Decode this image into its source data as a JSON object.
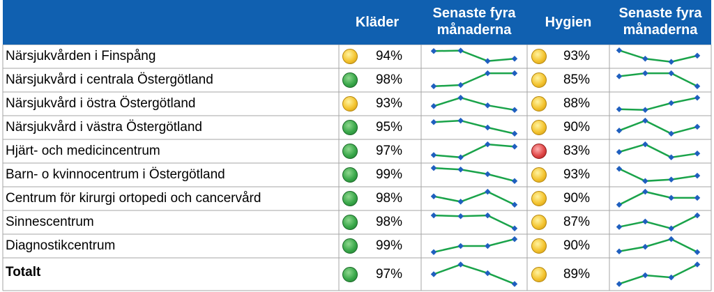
{
  "headers": {
    "klader": "Kläder",
    "trend1_line1": "Senaste fyra",
    "trend1_line2": "månaderna",
    "hygien": "Hygien",
    "trend2_line1": "Senaste fyra",
    "trend2_line2": "månaderna"
  },
  "colors": {
    "header_bg": "#1060b0",
    "spark_line": "#1aa34a",
    "spark_point": "#1f5fbf",
    "grid": "#a6a6a6"
  },
  "chart_data": {
    "type": "table",
    "rows": [
      {
        "name": "Närsjukvården i Finspång",
        "klader": "94%",
        "klader_status": "yellow",
        "klader_trend": [
          0.85,
          0.88,
          0.2,
          0.35
        ],
        "hygien": "93%",
        "hygien_status": "yellow",
        "hygien_trend": [
          0.9,
          0.35,
          0.15,
          0.55
        ]
      },
      {
        "name": "Närsjukvård i centrala Östergötland",
        "klader": "98%",
        "klader_status": "green",
        "klader_trend": [
          0.1,
          0.18,
          0.95,
          0.95
        ],
        "hygien": "85%",
        "hygien_status": "yellow",
        "hygien_trend": [
          0.75,
          0.95,
          0.95,
          0.1
        ]
      },
      {
        "name": "Närsjukvård i östra Östergötland",
        "klader": "93%",
        "klader_status": "yellow",
        "klader_trend": [
          0.35,
          0.9,
          0.4,
          0.1
        ],
        "hygien": "88%",
        "hygien_status": "yellow",
        "hygien_trend": [
          0.15,
          0.1,
          0.55,
          0.9
        ]
      },
      {
        "name": "Närsjukvård i västra Östergötland",
        "klader": "95%",
        "klader_status": "green",
        "klader_trend": [
          0.85,
          0.95,
          0.5,
          0.1
        ],
        "hygien": "90%",
        "hygien_status": "yellow",
        "hygien_trend": [
          0.3,
          0.95,
          0.1,
          0.55
        ]
      },
      {
        "name": "Hjärt- och medicincentrum",
        "klader": "97%",
        "klader_status": "green",
        "klader_trend": [
          0.25,
          0.1,
          0.95,
          0.8
        ],
        "hygien": "83%",
        "hygien_status": "red",
        "hygien_trend": [
          0.45,
          0.95,
          0.1,
          0.35
        ]
      },
      {
        "name": "Barn- o kvinnocentrum i Östergötland",
        "klader": "99%",
        "klader_status": "green",
        "klader_trend": [
          0.95,
          0.85,
          0.55,
          0.1
        ],
        "hygien": "93%",
        "hygien_status": "yellow",
        "hygien_trend": [
          0.9,
          0.1,
          0.2,
          0.45
        ]
      },
      {
        "name": "Centrum för kirurgi ortopedi och cancervård",
        "klader": "98%",
        "klader_status": "green",
        "klader_trend": [
          0.65,
          0.3,
          0.95,
          0.1
        ],
        "hygien": "90%",
        "hygien_status": "yellow",
        "hygien_trend": [
          0.1,
          0.95,
          0.55,
          0.55
        ]
      },
      {
        "name": "Sinnescentrum",
        "klader": "98%",
        "klader_status": "green",
        "klader_trend": [
          0.95,
          0.9,
          0.95,
          0.1
        ],
        "hygien": "87%",
        "hygien_status": "yellow",
        "hygien_trend": [
          0.2,
          0.55,
          0.1,
          0.95
        ]
      },
      {
        "name": "Diagnostikcentrum",
        "klader": "99%",
        "klader_status": "green",
        "klader_trend": [
          0.1,
          0.5,
          0.5,
          0.95
        ],
        "hygien": "90%",
        "hygien_status": "yellow",
        "hygien_trend": [
          0.15,
          0.45,
          0.95,
          0.1
        ]
      },
      {
        "name": "Totalt",
        "klader": "97%",
        "klader_status": "green",
        "klader_trend": [
          0.5,
          0.95,
          0.55,
          0.05
        ],
        "hygien": "89%",
        "hygien_status": "yellow",
        "hygien_trend": [
          0.05,
          0.45,
          0.35,
          0.95
        ],
        "total": true
      }
    ]
  }
}
